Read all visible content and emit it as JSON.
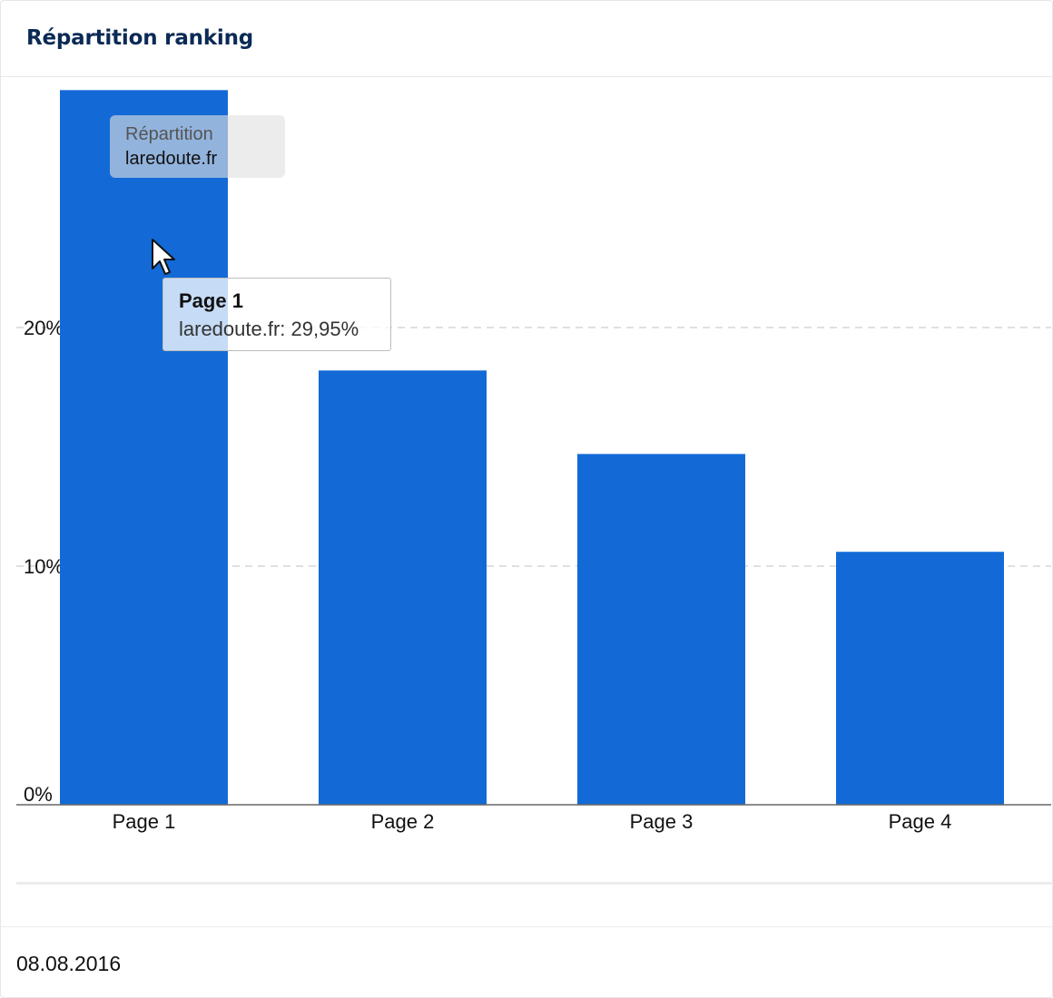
{
  "header": {
    "title": "Répartition ranking"
  },
  "legend": {
    "title": "Répartition",
    "item": "laredoute.fr"
  },
  "tooltip": {
    "title": "Page 1",
    "body": "laredoute.fr: 29,95%"
  },
  "footer": {
    "date": "08.08.2016"
  },
  "colors": {
    "bar": "#136ad6",
    "grid": "#d6d6d6",
    "axis": "#666666",
    "title": "#0b2a55"
  },
  "chart_data": {
    "type": "bar",
    "categories": [
      "Page 1",
      "Page 2",
      "Page 3",
      "Page 4"
    ],
    "series": [
      {
        "name": "laredoute.fr",
        "values": [
          29.95,
          18.2,
          14.7,
          10.6
        ]
      }
    ],
    "ylim": [
      0,
      30
    ],
    "yticks": [
      0,
      10,
      20
    ],
    "ytick_labels": [
      "0%",
      "10%",
      "20%"
    ],
    "grid": true,
    "legend_position": "top-left"
  }
}
